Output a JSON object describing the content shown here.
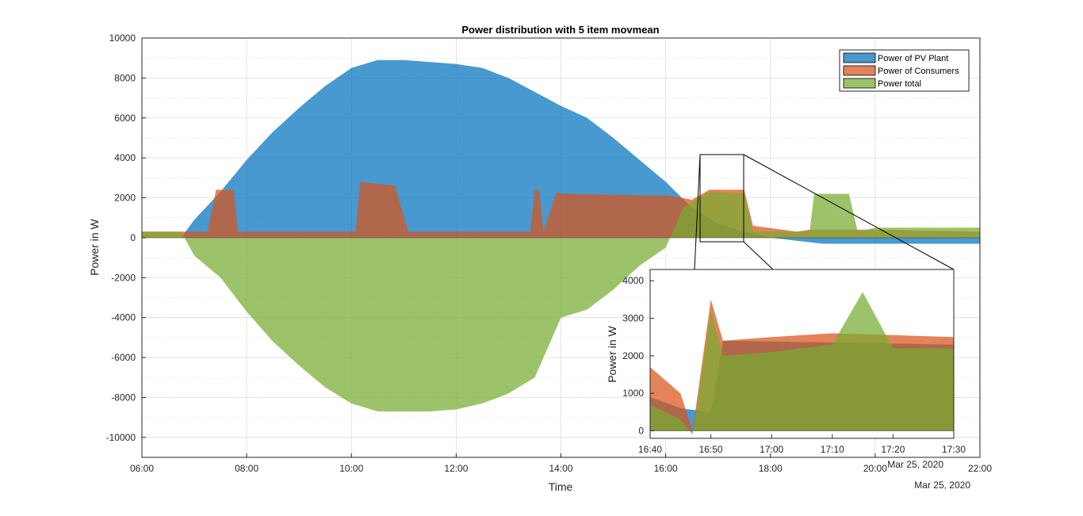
{
  "chart_data": [
    {
      "type": "area",
      "title": "Power distribution with 5 item movmean",
      "xlabel": "Time",
      "ylabel": "Power in W",
      "date_label": "Mar 25, 2020",
      "x_ticks": [
        "06:00",
        "08:00",
        "10:00",
        "12:00",
        "14:00",
        "16:00",
        "18:00",
        "20:00",
        "22:00"
      ],
      "y_ticks": [
        10000,
        8000,
        6000,
        4000,
        2000,
        0,
        -2000,
        -4000,
        -6000,
        -8000,
        -10000
      ],
      "xlim": [
        "06:00",
        "22:00"
      ],
      "ylim": [
        -11000,
        10000
      ],
      "grid": true,
      "legend_position": "top-right",
      "series": [
        {
          "name": "Power of PV Plant",
          "color": "#0072bd",
          "points": [
            [
              "06:00",
              0
            ],
            [
              "06:45",
              0
            ],
            [
              "07:00",
              900
            ],
            [
              "07:30",
              2300
            ],
            [
              "08:00",
              3900
            ],
            [
              "08:30",
              5300
            ],
            [
              "09:00",
              6500
            ],
            [
              "09:30",
              7600
            ],
            [
              "10:00",
              8500
            ],
            [
              "10:30",
              8900
            ],
            [
              "11:00",
              8900
            ],
            [
              "11:30",
              8800
            ],
            [
              "12:00",
              8700
            ],
            [
              "12:30",
              8500
            ],
            [
              "13:00",
              8000
            ],
            [
              "13:30",
              7300
            ],
            [
              "14:00",
              6600
            ],
            [
              "14:30",
              6000
            ],
            [
              "15:00",
              5000
            ],
            [
              "15:30",
              3900
            ],
            [
              "16:00",
              2800
            ],
            [
              "16:30",
              1500
            ],
            [
              "17:00",
              700
            ],
            [
              "17:30",
              300
            ],
            [
              "18:00",
              0
            ],
            [
              "19:00",
              -300
            ],
            [
              "20:00",
              -300
            ],
            [
              "21:00",
              -300
            ],
            [
              "22:00",
              -300
            ]
          ]
        },
        {
          "name": "Power of Consumers",
          "color": "#d95319",
          "points": [
            [
              "06:00",
              300
            ],
            [
              "07:15",
              300
            ],
            [
              "07:25",
              2400
            ],
            [
              "07:45",
              2400
            ],
            [
              "07:50",
              300
            ],
            [
              "10:05",
              300
            ],
            [
              "10:10",
              2800
            ],
            [
              "10:50",
              2600
            ],
            [
              "11:05",
              300
            ],
            [
              "13:25",
              300
            ],
            [
              "13:30",
              2400
            ],
            [
              "13:35",
              2400
            ],
            [
              "13:40",
              300
            ],
            [
              "13:55",
              2300
            ],
            [
              "14:00",
              2200
            ],
            [
              "16:05",
              2100
            ],
            [
              "16:30",
              1900
            ],
            [
              "16:50",
              2400
            ],
            [
              "17:30",
              2400
            ],
            [
              "17:40",
              600
            ],
            [
              "18:30",
              300
            ],
            [
              "18:45",
              400
            ],
            [
              "20:00",
              400
            ],
            [
              "22:00",
              300
            ]
          ]
        },
        {
          "name": "Power total",
          "color": "#77ac30",
          "points": [
            [
              "06:00",
              300
            ],
            [
              "06:45",
              300
            ],
            [
              "07:00",
              -900
            ],
            [
              "07:30",
              -2000
            ],
            [
              "08:00",
              -3700
            ],
            [
              "08:30",
              -5200
            ],
            [
              "09:00",
              -6400
            ],
            [
              "09:30",
              -7500
            ],
            [
              "10:00",
              -8300
            ],
            [
              "10:30",
              -8700
            ],
            [
              "11:00",
              -8700
            ],
            [
              "11:30",
              -8700
            ],
            [
              "12:00",
              -8600
            ],
            [
              "12:30",
              -8300
            ],
            [
              "13:00",
              -7800
            ],
            [
              "13:30",
              -7000
            ],
            [
              "14:00",
              -4000
            ],
            [
              "14:30",
              -3600
            ],
            [
              "15:00",
              -2600
            ],
            [
              "15:30",
              -1400
            ],
            [
              "16:00",
              -500
            ],
            [
              "16:20",
              1500
            ],
            [
              "16:50",
              2300
            ],
            [
              "17:30",
              2200
            ],
            [
              "17:40",
              300
            ],
            [
              "18:45",
              300
            ],
            [
              "18:50",
              2200
            ],
            [
              "19:30",
              2200
            ],
            [
              "19:40",
              300
            ],
            [
              "20:00",
              500
            ],
            [
              "22:00",
              500
            ]
          ]
        }
      ]
    },
    {
      "type": "area",
      "title": "",
      "xlabel": "",
      "ylabel": "Power in W",
      "date_label": "Mar 25, 2020",
      "x_ticks": [
        "16:40",
        "16:50",
        "17:00",
        "17:10",
        "17:20",
        "17:30"
      ],
      "y_ticks": [
        0,
        1000,
        2000,
        3000,
        4000
      ],
      "xlim": [
        "16:40",
        "17:30"
      ],
      "ylim": [
        -200,
        4300
      ],
      "grid": false,
      "series": [
        {
          "name": "Power of PV Plant",
          "color": "#0072bd",
          "points": [
            [
              "16:40",
              900
            ],
            [
              "16:45",
              600
            ],
            [
              "16:50",
              500
            ],
            [
              "16:52",
              2400
            ],
            [
              "17:30",
              2300
            ]
          ]
        },
        {
          "name": "Power of Consumers",
          "color": "#d95319",
          "points": [
            [
              "16:40",
              1700
            ],
            [
              "16:45",
              1000
            ],
            [
              "16:47",
              0
            ],
            [
              "16:50",
              3500
            ],
            [
              "16:52",
              2400
            ],
            [
              "17:00",
              2500
            ],
            [
              "17:10",
              2600
            ],
            [
              "17:20",
              2550
            ],
            [
              "17:30",
              2500
            ]
          ]
        },
        {
          "name": "Power total",
          "color": "#77ac30",
          "points": [
            [
              "16:40",
              700
            ],
            [
              "16:45",
              300
            ],
            [
              "16:47",
              -100
            ],
            [
              "16:50",
              3200
            ],
            [
              "16:52",
              2000
            ],
            [
              "17:00",
              2100
            ],
            [
              "17:10",
              2300
            ],
            [
              "17:15",
              3700
            ],
            [
              "17:20",
              2200
            ],
            [
              "17:30",
              2200
            ]
          ]
        }
      ]
    }
  ]
}
